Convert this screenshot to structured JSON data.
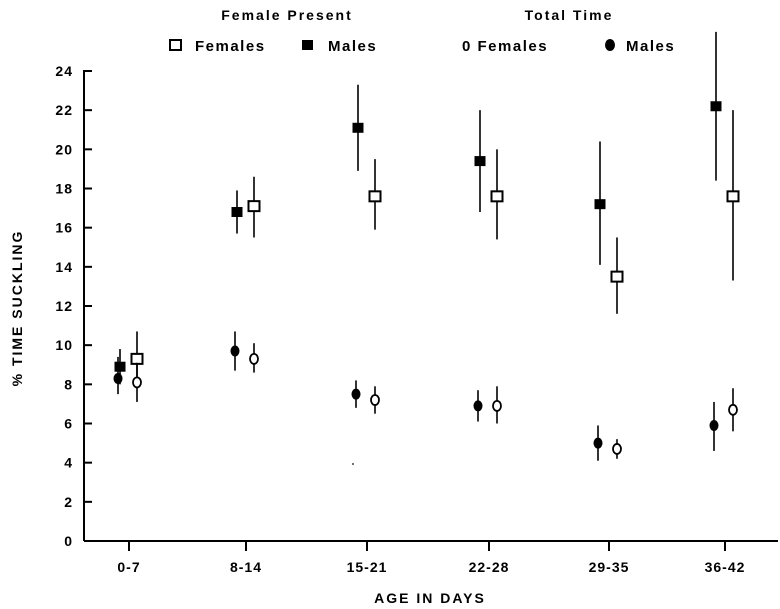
{
  "chart_data": {
    "type": "scatter",
    "title": "",
    "xlabel": "AGE IN DAYS",
    "ylabel": "% TIME SUCKLING",
    "ylim": [
      0,
      24
    ],
    "yticks": [
      0,
      2,
      4,
      6,
      8,
      10,
      12,
      14,
      16,
      18,
      20,
      22,
      24
    ],
    "categories": [
      "0-7",
      "8-14",
      "15-21",
      "22-28",
      "29-35",
      "36-42"
    ],
    "legend_groups": [
      {
        "title": "Female Present",
        "entries": [
          "Females",
          "Males"
        ]
      },
      {
        "title": "Total Time",
        "entries": [
          "0 Females",
          "Males"
        ]
      }
    ],
    "series": [
      {
        "name": "Females",
        "group": "Female Present",
        "marker": "open-square",
        "values": [
          9.3,
          17.1,
          17.6,
          17.6,
          13.5,
          17.6
        ],
        "error_low": [
          8.0,
          15.5,
          15.9,
          15.4,
          11.6,
          13.3
        ],
        "error_high": [
          10.7,
          18.6,
          19.5,
          20.0,
          15.5,
          22.0
        ]
      },
      {
        "name": "Males",
        "group": "Female Present",
        "marker": "filled-square",
        "values": [
          8.9,
          16.8,
          21.1,
          19.4,
          17.2,
          22.2
        ],
        "error_low": [
          8.0,
          15.7,
          18.9,
          16.8,
          14.1,
          18.4
        ],
        "error_high": [
          9.8,
          17.9,
          23.3,
          22.0,
          20.4,
          26.0
        ]
      },
      {
        "name": "0 Females",
        "group": "Total Time",
        "marker": "open-circle",
        "values": [
          8.1,
          9.3,
          7.2,
          6.9,
          4.7,
          6.7
        ],
        "error_low": [
          7.1,
          8.6,
          6.5,
          6.0,
          4.2,
          5.6
        ],
        "error_high": [
          9.1,
          10.1,
          7.9,
          7.9,
          5.2,
          7.8
        ]
      },
      {
        "name": "Males",
        "group": "Total Time",
        "marker": "filled-circle",
        "values": [
          8.3,
          9.7,
          7.5,
          6.9,
          5.0,
          5.9
        ],
        "error_low": [
          7.5,
          8.7,
          6.8,
          6.1,
          4.1,
          4.6
        ],
        "error_high": [
          9.4,
          10.7,
          8.2,
          7.7,
          5.9,
          7.1
        ]
      }
    ],
    "grid": false,
    "legend_position": "top"
  }
}
